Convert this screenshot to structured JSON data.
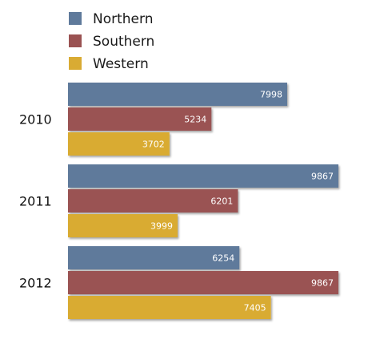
{
  "chart_data": {
    "type": "bar",
    "orientation": "horizontal",
    "categories": [
      "2010",
      "2011",
      "2012"
    ],
    "series": [
      {
        "name": "Northern",
        "color": "#5f7a9b",
        "values": [
          7998,
          9867,
          6254
        ]
      },
      {
        "name": "Southern",
        "color": "#9a5252",
        "values": [
          5234,
          6201,
          9867
        ]
      },
      {
        "name": "Western",
        "color": "#d9ab33",
        "values": [
          3702,
          3999,
          7405
        ]
      }
    ],
    "xlim": [
      0,
      9867
    ],
    "grid": false,
    "legend": "top-left",
    "data_labels": true
  }
}
